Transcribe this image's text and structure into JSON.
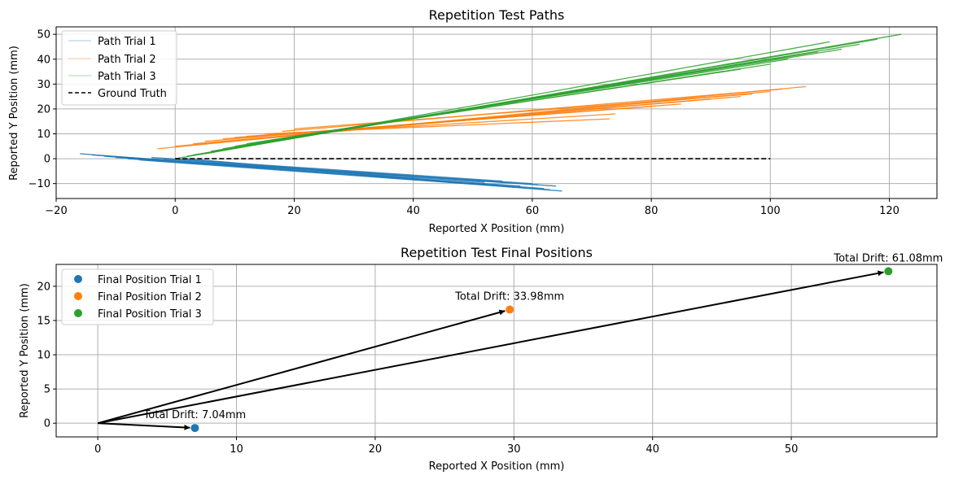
{
  "chart_data": [
    {
      "type": "line",
      "title": "Repetition Test Paths",
      "xlabel": "Reported X Position (mm)",
      "ylabel": "Reported Y Position (mm)",
      "xlim": [
        -20,
        128
      ],
      "ylim": [
        -16,
        53
      ],
      "xticks": [
        -20,
        0,
        20,
        40,
        60,
        80,
        100,
        120
      ],
      "yticks": [
        -10,
        0,
        10,
        20,
        30,
        40,
        50
      ],
      "grid": true,
      "legend": "top-left",
      "series": [
        {
          "name": "Path Trial 1",
          "color": "#1f77b4",
          "paths": [
            {
              "start": [
                -16,
                2
              ],
              "end": [
                65,
                -13
              ]
            },
            {
              "start": [
                -14,
                1.5
              ],
              "end": [
                64,
                -11
              ]
            },
            {
              "start": [
                -12,
                1
              ],
              "end": [
                62,
                -12
              ]
            },
            {
              "start": [
                -10,
                0.5
              ],
              "end": [
                60,
                -10
              ]
            },
            {
              "start": [
                -8,
                0
              ],
              "end": [
                58,
                -11
              ]
            },
            {
              "start": [
                -6,
                -0.5
              ],
              "end": [
                63,
                -12.5
              ]
            },
            {
              "start": [
                -4,
                0.5
              ],
              "end": [
                55,
                -9
              ]
            },
            {
              "start": [
                -2,
                0
              ],
              "end": [
                61,
                -10.5
              ]
            },
            {
              "start": [
                0,
                -1
              ],
              "end": [
                52,
                -9.5
              ]
            },
            {
              "start": [
                2,
                0
              ],
              "end": [
                57,
                -11.5
              ]
            }
          ]
        },
        {
          "name": "Path Trial 2",
          "color": "#ff7f0e",
          "paths": [
            {
              "start": [
                -3,
                4
              ],
              "end": [
                106,
                29
              ]
            },
            {
              "start": [
                0,
                5
              ],
              "end": [
                100,
                27
              ]
            },
            {
              "start": [
                3,
                6
              ],
              "end": [
                95,
                25
              ]
            },
            {
              "start": [
                5,
                7
              ],
              "end": [
                90,
                24
              ]
            },
            {
              "start": [
                8,
                8
              ],
              "end": [
                85,
                22
              ]
            },
            {
              "start": [
                10,
                8.5
              ],
              "end": [
                80,
                21
              ]
            },
            {
              "start": [
                12,
                9
              ],
              "end": [
                74,
                18
              ]
            },
            {
              "start": [
                15,
                10
              ],
              "end": [
                73,
                16
              ]
            },
            {
              "start": [
                18,
                11
              ],
              "end": [
                102,
                28
              ]
            },
            {
              "start": [
                20,
                12
              ],
              "end": [
                97,
                26
              ]
            }
          ]
        },
        {
          "name": "Path Trial 3",
          "color": "#2ca02c",
          "paths": [
            {
              "start": [
                0,
                0
              ],
              "end": [
                122,
                50
              ]
            },
            {
              "start": [
                2,
                1
              ],
              "end": [
                118,
                48
              ]
            },
            {
              "start": [
                3,
                1.5
              ],
              "end": [
                115,
                46
              ]
            },
            {
              "start": [
                5,
                2
              ],
              "end": [
                110,
                47
              ]
            },
            {
              "start": [
                6,
                3
              ],
              "end": [
                108,
                43
              ]
            },
            {
              "start": [
                8,
                4
              ],
              "end": [
                105,
                42
              ]
            },
            {
              "start": [
                10,
                5
              ],
              "end": [
                112,
                44
              ]
            },
            {
              "start": [
                12,
                6
              ],
              "end": [
                103,
                40
              ]
            },
            {
              "start": [
                15,
                7
              ],
              "end": [
                100,
                38
              ]
            },
            {
              "start": [
                20,
                9
              ],
              "end": [
                95,
                36
              ]
            }
          ]
        },
        {
          "name": "Ground Truth",
          "color": "#000000",
          "style": "dashed",
          "x": [
            0,
            100
          ],
          "y": [
            0,
            0
          ]
        }
      ]
    },
    {
      "type": "scatter",
      "title": "Repetition Test Final Positions",
      "xlabel": "Reported X Position (mm)",
      "ylabel": "Reported Y Position (mm)",
      "xlim": [
        -3,
        60.5
      ],
      "ylim": [
        -2,
        23.2
      ],
      "xticks": [
        0,
        10,
        20,
        30,
        40,
        50
      ],
      "yticks": [
        0,
        5,
        10,
        15,
        20
      ],
      "grid": true,
      "legend": "top-left",
      "series": [
        {
          "name": "Final Position Trial 1",
          "color": "#1f77b4",
          "x": 7.0,
          "y": -0.7,
          "annotation": "Total Drift: 7.04mm"
        },
        {
          "name": "Final Position Trial 2",
          "color": "#ff7f0e",
          "x": 29.7,
          "y": 16.6,
          "annotation": "Total Drift: 33.98mm"
        },
        {
          "name": "Final Position Trial 3",
          "color": "#2ca02c",
          "x": 57.0,
          "y": 22.2,
          "annotation": "Total Drift: 61.08mm"
        }
      ],
      "arrows_from": [
        0,
        0
      ]
    }
  ]
}
